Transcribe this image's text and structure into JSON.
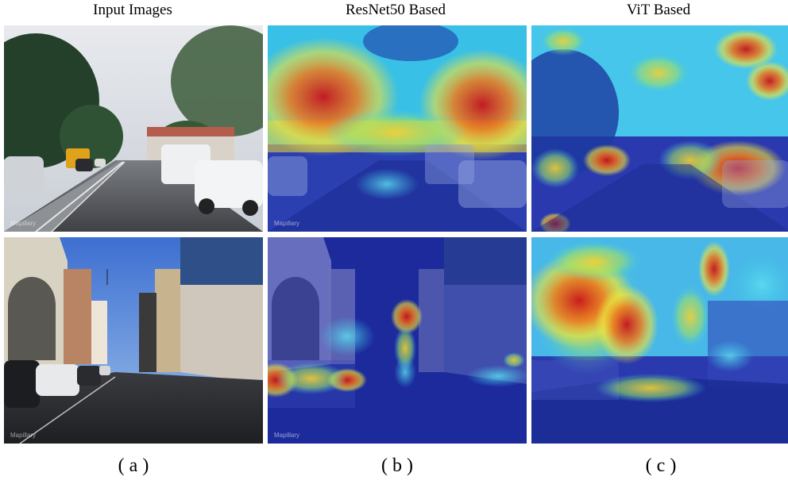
{
  "columns": [
    {
      "title": "Input Images",
      "caption": "( a )"
    },
    {
      "title": "ResNet50 Based",
      "caption": "( b )"
    },
    {
      "title": "ViT Based",
      "caption": "( c )"
    }
  ],
  "watermark": "Mapillary",
  "colors": {
    "heat_red": "#d62a1c",
    "heat_yellow": "#f2e43a",
    "heat_cyan": "#3ec8e8",
    "heat_blue": "#1a2ea8"
  }
}
